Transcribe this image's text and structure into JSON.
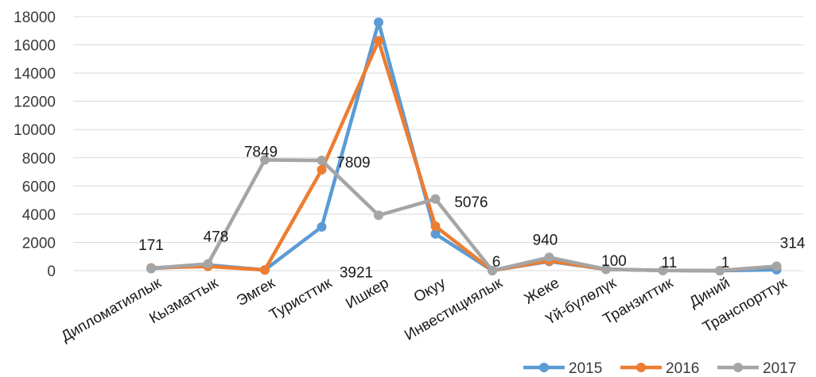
{
  "chart_data": {
    "type": "line",
    "categories": [
      "Дипломатиялык",
      "Кызматтык",
      "Эмгек",
      "Туристтик",
      "Ишкер",
      "Окуу",
      "Инвестициялык",
      "Жеке",
      "Үй-бүлөлүк",
      "Транзиттик",
      "Диний",
      "Транспорттук"
    ],
    "series": [
      {
        "name": "2015",
        "color": "#5B9BD5",
        "values": [
          150,
          400,
          50,
          3100,
          17600,
          2600,
          10,
          650,
          100,
          11,
          1,
          60
        ]
      },
      {
        "name": "2016",
        "color": "#ED7D31",
        "values": [
          200,
          300,
          50,
          7150,
          16300,
          3150,
          8,
          700,
          100,
          11,
          1,
          300
        ]
      },
      {
        "name": "2017",
        "color": "#A5A5A5",
        "values": [
          171,
          478,
          7849,
          7809,
          3921,
          5076,
          6,
          940,
          100,
          11,
          1,
          314
        ]
      }
    ],
    "data_labels": [
      "171",
      "478",
      "7849",
      "7809",
      "3921",
      "5076",
      "6",
      "940",
      "100",
      "11",
      "1",
      "314"
    ],
    "yticks": [
      "0",
      "2000",
      "4000",
      "6000",
      "8000",
      "10000",
      "12000",
      "14000",
      "16000",
      "18000"
    ],
    "ylim": [
      0,
      18000
    ],
    "grid": true,
    "legend_position": "bottom-right",
    "title": "",
    "xlabel": "",
    "ylabel": ""
  }
}
